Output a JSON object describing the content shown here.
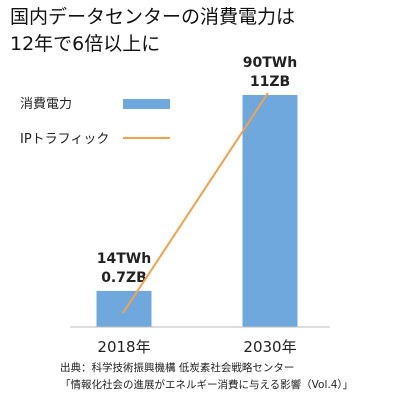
{
  "title": {
    "line1": "国内データセンターの消費電力は",
    "line2": "12年で6倍以上に"
  },
  "legend": {
    "position": "top-left",
    "items": [
      {
        "label": "消費電力",
        "kind": "bar",
        "color": "#6fa8dc"
      },
      {
        "label": "IPトラフィック",
        "kind": "line",
        "color": "#f5a04a"
      }
    ]
  },
  "chart_data": {
    "type": "bar",
    "title": "国内データセンターの消費電力は12年で6倍以上に",
    "categories": [
      "2018年",
      "2030年"
    ],
    "series": [
      {
        "name": "消費電力",
        "type": "bar",
        "unit": "TWh",
        "values": [
          14,
          90
        ],
        "data_labels": [
          "14TWh",
          "90TWh"
        ],
        "color": "#6fa8dc"
      },
      {
        "name": "IPトラフィック",
        "type": "line",
        "unit": "ZB",
        "values": [
          0.7,
          11
        ],
        "data_labels": [
          "0.7ZB",
          "11ZB"
        ],
        "color": "#f5a04a"
      }
    ],
    "ylim": [
      0,
      100
    ],
    "xlabel": "",
    "ylabel": "",
    "grid": false
  },
  "source": {
    "line1": "出典：科学技術振興機構 低炭素社会戦略センター",
    "line2": "「情報化社会の進展がエネルギー消費に与える影響（Vol.4）」"
  }
}
